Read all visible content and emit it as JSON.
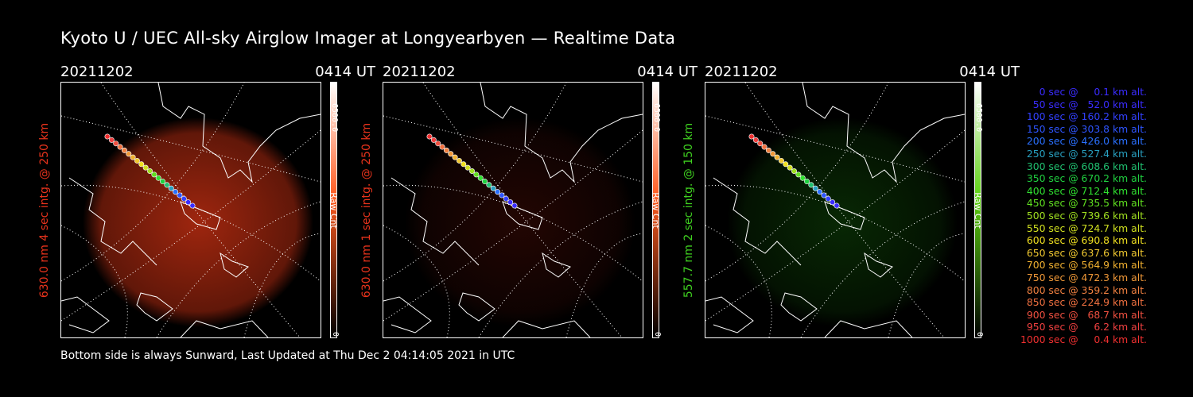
{
  "title": "Kyoto U / UEC All-sky Airglow Imager at Longyearbyen — Realtime Data",
  "footer": "Bottom side is always Sunward, Last Updated at Thu Dec  2 04:14:05 2021 in UTC",
  "panels": [
    {
      "date": "20211202",
      "time": "0414 UT",
      "ylabel": "630.0 nm 4 sec intg. @ 250 km",
      "label_color": "#e8331c",
      "cb_max": "6500.0",
      "cb_min": "0",
      "cb_unit": "Raw Cnt",
      "cb_top": "#ff5a1e",
      "glow": "#b02a10",
      "glow_level": 0.55
    },
    {
      "date": "20211202",
      "time": "0414 UT",
      "ylabel": "630.0 nm 1 sec intg. @ 250 km",
      "label_color": "#e8331c",
      "cb_max": "6500.0",
      "cb_min": "0",
      "cb_unit": "Raw Cnt",
      "cb_top": "#ff5a1e",
      "glow": "#3a0a05",
      "glow_level": 0.25
    },
    {
      "date": "20211202",
      "time": "0414 UT",
      "ylabel": "557.7 nm 2 sec intg. @ 150 km",
      "label_color": "#3fd020",
      "cb_max": "6500.0",
      "cb_min": "0",
      "cb_unit": "Raw Cnt",
      "cb_top": "#5cd010",
      "glow": "#0c3d06",
      "glow_level": 0.3
    }
  ],
  "legend": [
    {
      "text": "   0 sec @     0.1 km alt.",
      "color": "#3a2cff"
    },
    {
      "text": "  50 sec @   52.0 km alt.",
      "color": "#3a2cff"
    },
    {
      "text": " 100 sec @ 160.2 km alt.",
      "color": "#3240ff"
    },
    {
      "text": " 150 sec @ 303.8 km alt.",
      "color": "#2e55ff"
    },
    {
      "text": " 200 sec @ 426.0 km alt.",
      "color": "#2a70ff"
    },
    {
      "text": " 250 sec @ 527.4 km alt.",
      "color": "#28a0c0"
    },
    {
      "text": " 300 sec @ 608.6 km alt.",
      "color": "#20c070"
    },
    {
      "text": " 350 sec @ 670.2 km alt.",
      "color": "#20d040"
    },
    {
      "text": " 400 sec @ 712.4 km alt.",
      "color": "#30e030"
    },
    {
      "text": " 450 sec @ 735.5 km alt.",
      "color": "#60e020"
    },
    {
      "text": " 500 sec @ 739.6 km alt.",
      "color": "#a0e020"
    },
    {
      "text": " 550 sec @ 724.7 km alt.",
      "color": "#d0e020"
    },
    {
      "text": " 600 sec @ 690.8 km alt.",
      "color": "#f0e020"
    },
    {
      "text": " 650 sec @ 637.6 km alt.",
      "color": "#f0c830"
    },
    {
      "text": " 700 sec @ 564.9 km alt.",
      "color": "#f0b030"
    },
    {
      "text": " 750 sec @ 472.3 km alt.",
      "color": "#f09838"
    },
    {
      "text": " 800 sec @ 359.2 km alt.",
      "color": "#f08040"
    },
    {
      "text": " 850 sec @ 224.9 km alt.",
      "color": "#f07040"
    },
    {
      "text": " 900 sec @   68.7 km alt.",
      "color": "#f05040"
    },
    {
      "text": " 950 sec @     6.2 km alt.",
      "color": "#f04040"
    },
    {
      "text": "1000 sec @     0.4 km alt.",
      "color": "#f03030"
    }
  ]
}
